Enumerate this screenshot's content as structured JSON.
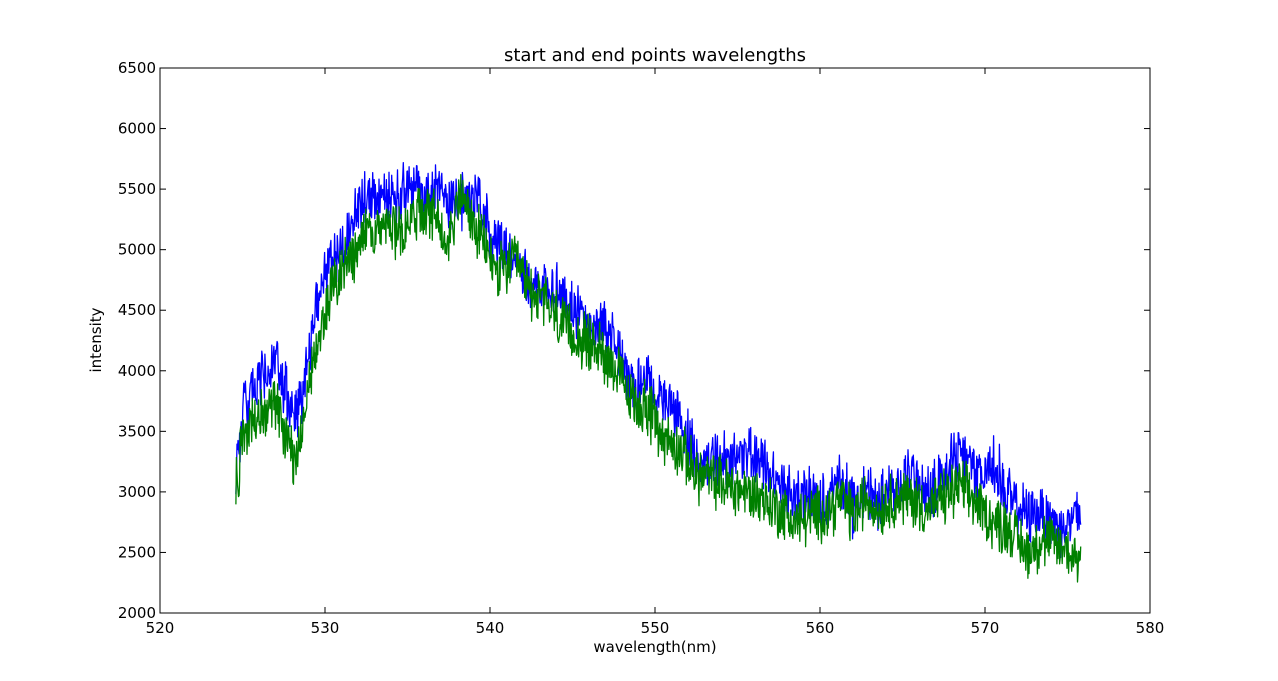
{
  "chart_data": {
    "type": "line",
    "title": "start and end points wavelengths",
    "xlabel": "wavelength(nm)",
    "ylabel": "intensity",
    "xlim": [
      520,
      580
    ],
    "ylim": [
      2000,
      6500
    ],
    "xticks": [
      520,
      530,
      540,
      550,
      560,
      570,
      580
    ],
    "yticks": [
      2000,
      2500,
      3000,
      3500,
      4000,
      4500,
      5000,
      5500,
      6000,
      6500
    ],
    "grid": false,
    "legend": "none",
    "series": [
      {
        "color": "#0000ff",
        "x": [
          524.6,
          525,
          526,
          527,
          527.8,
          528.3,
          529,
          529.6,
          530.2,
          531,
          531.8,
          532.5,
          533.5,
          534.5,
          535.3,
          536,
          536.8,
          537.5,
          538.3,
          539,
          539.6,
          540.5,
          541.5,
          542.5,
          543.5,
          544.5,
          545.5,
          546.5,
          547.5,
          548.5,
          549.5,
          550.5,
          551.5,
          552.5,
          553.5,
          554.5,
          555.5,
          556.5,
          557.5,
          558.5,
          559.5,
          560.5,
          561.3,
          562,
          562.8,
          563.5,
          564.5,
          565.5,
          566.5,
          567.5,
          568.5,
          569.5,
          570.5,
          571.5,
          572.5,
          573.5,
          574.5,
          575.8
        ],
        "y": [
          3200,
          3650,
          3900,
          4050,
          3750,
          3550,
          4150,
          4600,
          4900,
          5000,
          5300,
          5450,
          5400,
          5450,
          5550,
          5450,
          5550,
          5400,
          5400,
          5450,
          5300,
          5050,
          4950,
          4700,
          4700,
          4600,
          4450,
          4400,
          4300,
          3850,
          3900,
          3750,
          3600,
          3250,
          3250,
          3250,
          3350,
          3250,
          3050,
          2950,
          3000,
          2900,
          3100,
          2850,
          3050,
          2900,
          3050,
          3150,
          2950,
          3150,
          3350,
          3100,
          3250,
          2950,
          2800,
          2850,
          2700,
          2800
        ]
      },
      {
        "color": "#008000",
        "x": [
          524.6,
          525,
          526,
          527,
          527.8,
          528.2,
          529,
          529.6,
          530.2,
          531,
          531.8,
          532.5,
          533.5,
          534.5,
          535.3,
          536,
          536.8,
          537.5,
          538.2,
          539,
          539.6,
          540.5,
          541.5,
          542.5,
          543.5,
          544.5,
          545.5,
          546.5,
          547.5,
          548.5,
          549.5,
          550.5,
          551.5,
          552.5,
          553.5,
          554.5,
          555.5,
          556.5,
          557.5,
          558.5,
          559.5,
          560.5,
          561.3,
          562,
          562.8,
          563.5,
          564.5,
          565.5,
          566.5,
          567.5,
          568.5,
          569.5,
          570.5,
          571.5,
          572.5,
          573.5,
          574.5,
          575.8
        ],
        "y": [
          3000,
          3450,
          3650,
          3750,
          3400,
          3250,
          3850,
          4250,
          4600,
          4800,
          4950,
          5150,
          5200,
          5150,
          5250,
          5300,
          5250,
          5100,
          5450,
          5200,
          5050,
          4800,
          4900,
          4650,
          4550,
          4350,
          4250,
          4200,
          4050,
          3750,
          3700,
          3450,
          3350,
          3150,
          3100,
          3050,
          3000,
          2950,
          2850,
          2750,
          2800,
          2850,
          2950,
          2800,
          2950,
          2850,
          2950,
          2950,
          2850,
          2950,
          3050,
          2900,
          2750,
          2700,
          2500,
          2600,
          2550,
          2450
        ]
      }
    ]
  }
}
